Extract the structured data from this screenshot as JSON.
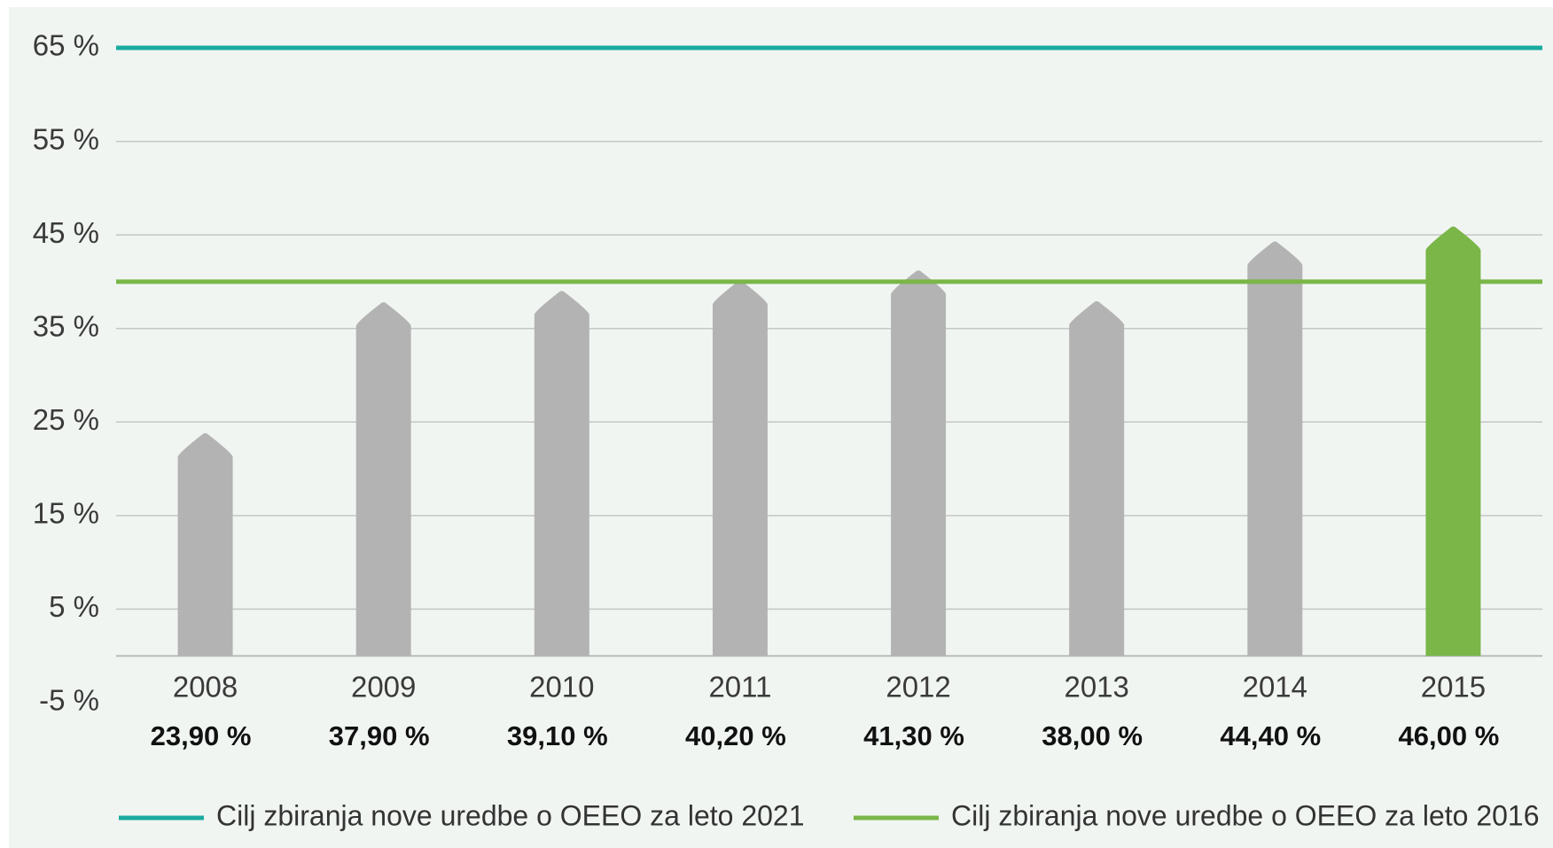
{
  "chart_data": {
    "type": "bar",
    "categories": [
      "2008",
      "2009",
      "2010",
      "2011",
      "2012",
      "2013",
      "2014",
      "2015"
    ],
    "values": [
      23.9,
      37.9,
      39.1,
      40.2,
      41.3,
      38.0,
      44.4,
      46.0
    ],
    "value_labels": [
      "23,90 %",
      "37,90 %",
      "39,10 %",
      "40,20 %",
      "41,30 %",
      "38,00 %",
      "44,40 %",
      "46,00 %"
    ],
    "colors": [
      "#b3b3b3",
      "#b3b3b3",
      "#b3b3b3",
      "#b3b3b3",
      "#b3b3b3",
      "#b3b3b3",
      "#b3b3b3",
      "#7ab648"
    ],
    "ylim": [
      -5,
      65
    ],
    "yticks": [
      {
        "value": -5,
        "label": "-5 %"
      },
      {
        "value": 5,
        "label": "5 %"
      },
      {
        "value": 15,
        "label": "15 %"
      },
      {
        "value": 25,
        "label": "25 %"
      },
      {
        "value": 35,
        "label": "35 %"
      },
      {
        "value": 45,
        "label": "45 %"
      },
      {
        "value": 55,
        "label": "55 %"
      },
      {
        "value": 65,
        "label": "65 %"
      }
    ],
    "grid": true,
    "reference_lines": [
      {
        "name": "Cilj zbiranja nove uredbe o OEEO za leto 2021",
        "value": 65,
        "color": "#1aaba0"
      },
      {
        "name": "Cilj zbiranja nove uredbe o OEEO za leto 2016",
        "value": 40,
        "color": "#7ab648"
      }
    ],
    "legend": "bottom"
  }
}
